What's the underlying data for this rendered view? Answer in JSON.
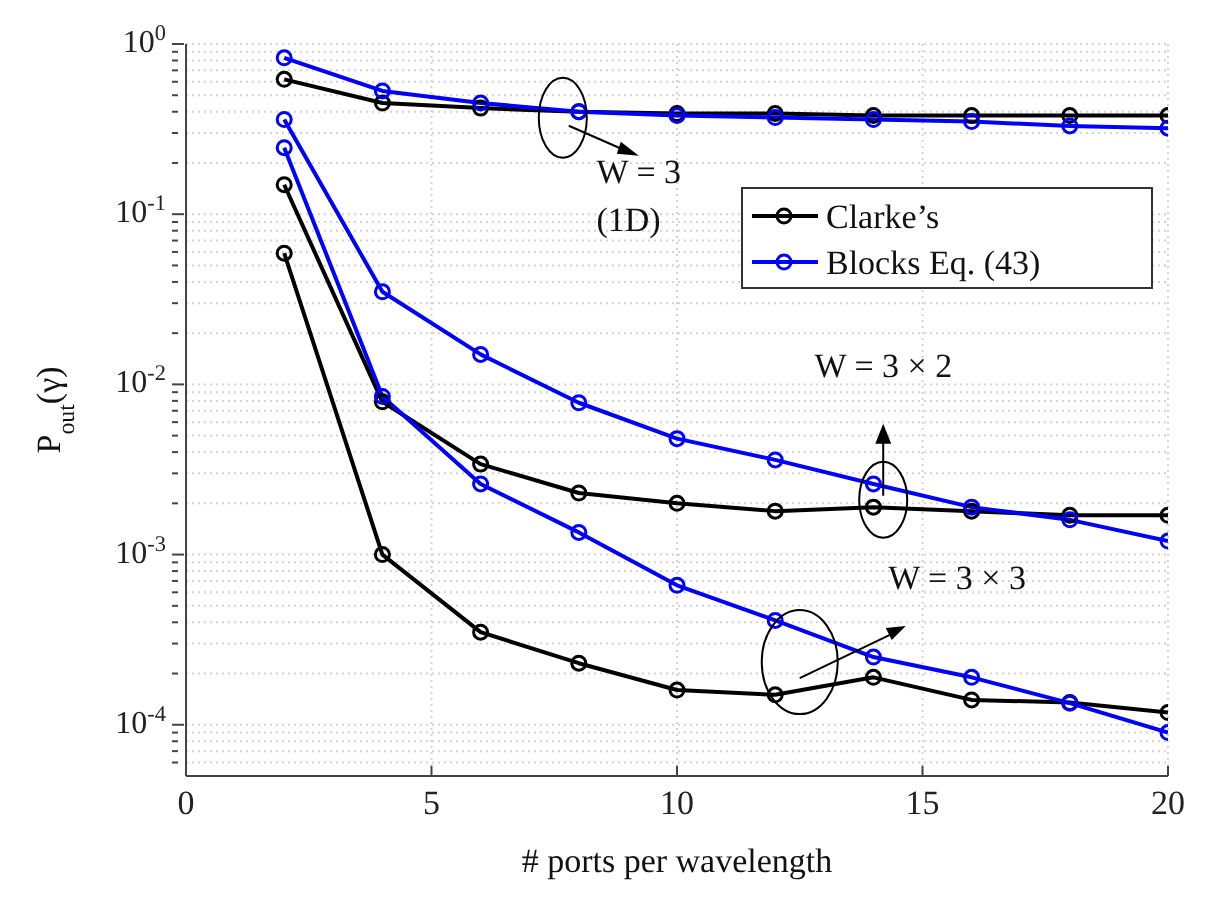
{
  "chart_data": {
    "type": "line",
    "xlabel": "# ports per wavelength",
    "ylabel": "P$_{out}$(γ)",
    "x": [
      2,
      4,
      6,
      8,
      10,
      12,
      14,
      16,
      18,
      20
    ],
    "series": [
      {
        "name": "Clarke’s",
        "color": "#000000",
        "values": [
          0.62,
          0.45,
          0.42,
          0.4,
          0.39,
          0.39,
          0.38,
          0.38,
          0.38,
          0.38
        ]
      },
      {
        "name": "Blocks Eq. (43)",
        "color": "#0000ff",
        "values": [
          0.83,
          0.53,
          0.45,
          0.4,
          0.38,
          0.37,
          0.36,
          0.35,
          0.33,
          0.32
        ]
      },
      {
        "color": "#000000",
        "values": [
          0.149,
          0.0079,
          0.0034,
          0.0023,
          0.002,
          0.0018,
          0.0019,
          0.0018,
          0.0017,
          0.0017
        ]
      },
      {
        "color": "#0000ff",
        "values": [
          0.36,
          0.035,
          0.015,
          0.0078,
          0.0048,
          0.0036,
          0.0026,
          0.0019,
          0.0016,
          0.0012
        ]
      },
      {
        "color": "#000000",
        "values": [
          0.059,
          0.001,
          0.00035,
          0.00023,
          0.00016,
          0.00015,
          0.00019,
          0.00014,
          0.000135,
          0.000118
        ]
      },
      {
        "color": "#0000ff",
        "values": [
          0.246,
          0.0085,
          0.0026,
          0.00135,
          0.00066,
          0.00041,
          0.00025,
          0.00019,
          0.000134,
          9e-05
        ]
      }
    ],
    "xlim": [
      0,
      20
    ],
    "xticks": [
      0,
      5,
      10,
      15,
      20
    ],
    "ylim": [
      5e-05,
      1
    ],
    "log": "y",
    "yticks": [
      {
        "value": 6e-05,
        "label": null
      },
      {
        "value": 7e-05,
        "label": null
      },
      {
        "value": 8e-05,
        "label": null
      },
      {
        "value": 9e-05,
        "label": null
      },
      {
        "value": 0.0001,
        "label": "10$^{-4}$"
      },
      {
        "value": 0.0002,
        "label": null
      },
      {
        "value": 0.0003,
        "label": null
      },
      {
        "value": 0.0004,
        "label": null
      },
      {
        "value": 0.0005,
        "label": null
      },
      {
        "value": 0.0006,
        "label": null
      },
      {
        "value": 0.0007,
        "label": null
      },
      {
        "value": 0.0008,
        "label": null
      },
      {
        "value": 0.0009,
        "label": null
      },
      {
        "value": 0.001,
        "label": "10$^{-3}$"
      },
      {
        "value": 0.002,
        "label": null
      },
      {
        "value": 0.003,
        "label": null
      },
      {
        "value": 0.004,
        "label": null
      },
      {
        "value": 0.005,
        "label": null
      },
      {
        "value": 0.006,
        "label": null
      },
      {
        "value": 0.007,
        "label": null
      },
      {
        "value": 0.008,
        "label": null
      },
      {
        "value": 0.009,
        "label": null
      },
      {
        "value": 0.01,
        "label": "10$^{-2}$"
      },
      {
        "value": 0.02,
        "label": null
      },
      {
        "value": 0.03,
        "label": null
      },
      {
        "value": 0.04,
        "label": null
      },
      {
        "value": 0.05,
        "label": null
      },
      {
        "value": 0.06,
        "label": null
      },
      {
        "value": 0.07,
        "label": null
      },
      {
        "value": 0.08,
        "label": null
      },
      {
        "value": 0.09,
        "label": null
      },
      {
        "value": 0.1,
        "label": "10$^{-1}$"
      },
      {
        "value": 0.2,
        "label": null
      },
      {
        "value": 0.3,
        "label": null
      },
      {
        "value": 0.4,
        "label": null
      },
      {
        "value": 0.5,
        "label": null
      },
      {
        "value": 0.6,
        "label": null
      },
      {
        "value": 0.7,
        "label": null
      },
      {
        "value": 0.8,
        "label": null
      },
      {
        "value": 0.9,
        "label": null
      },
      {
        "value": 1,
        "label": "10$^{0}$"
      }
    ],
    "grid": true,
    "legend": "top right",
    "marker": "circle",
    "line_style": "solid",
    "annotations": [
      "W = 3\n(1D)",
      "W = 3 × 2",
      {
        "text": "W = 3 × 3",
        "x": 12.5,
        "y": 0.00037
      }
    ]
  }
}
